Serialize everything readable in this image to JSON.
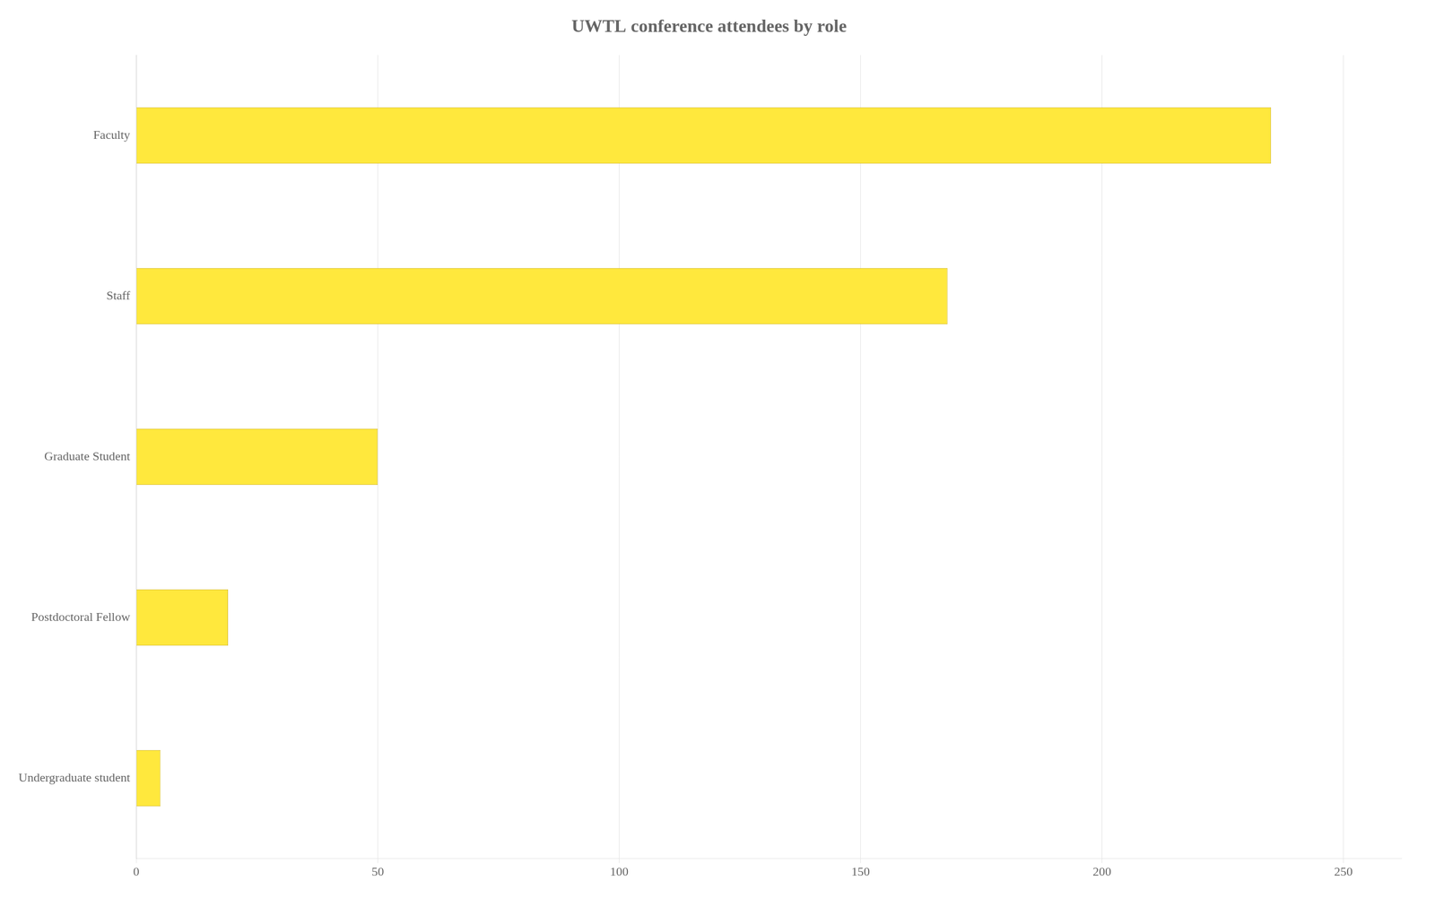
{
  "chart_data": {
    "type": "bar",
    "orientation": "horizontal",
    "title": "UWTL conference attendees by role",
    "categories": [
      "Undergraduate student",
      "Postdoctoral Fellow",
      "Graduate Student",
      "Staff",
      "Faculty"
    ],
    "values": [
      5,
      19,
      50,
      168,
      235
    ],
    "color": "#FFE83D",
    "xlim": [
      0,
      262
    ],
    "xticks": [
      0,
      50,
      100,
      150,
      200,
      250
    ],
    "grid": true
  }
}
